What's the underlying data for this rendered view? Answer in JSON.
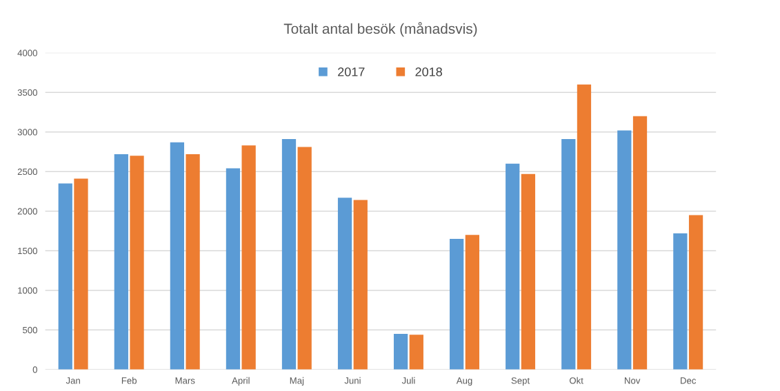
{
  "chart_data": {
    "type": "bar",
    "title": "Totalt antal besök (månadsvis)",
    "categories": [
      "Jan",
      "Feb",
      "Mars",
      "April",
      "Maj",
      "Juni",
      "Juli",
      "Aug",
      "Sept",
      "Okt",
      "Nov",
      "Dec"
    ],
    "series": [
      {
        "name": "2017",
        "color": "#5b9bd5",
        "values": [
          2350,
          2720,
          2870,
          2540,
          2910,
          2170,
          450,
          1650,
          2600,
          2910,
          3020,
          1720
        ]
      },
      {
        "name": "2018",
        "color": "#ed7d31",
        "values": [
          2410,
          2700,
          2720,
          2830,
          2810,
          2140,
          440,
          1700,
          2470,
          3600,
          3200,
          1950
        ]
      }
    ],
    "ylim": [
      0,
      4000
    ],
    "yticks": [
      0,
      500,
      1000,
      1500,
      2000,
      2500,
      3000,
      3500,
      4000
    ],
    "grid": "y",
    "legend": "top"
  }
}
